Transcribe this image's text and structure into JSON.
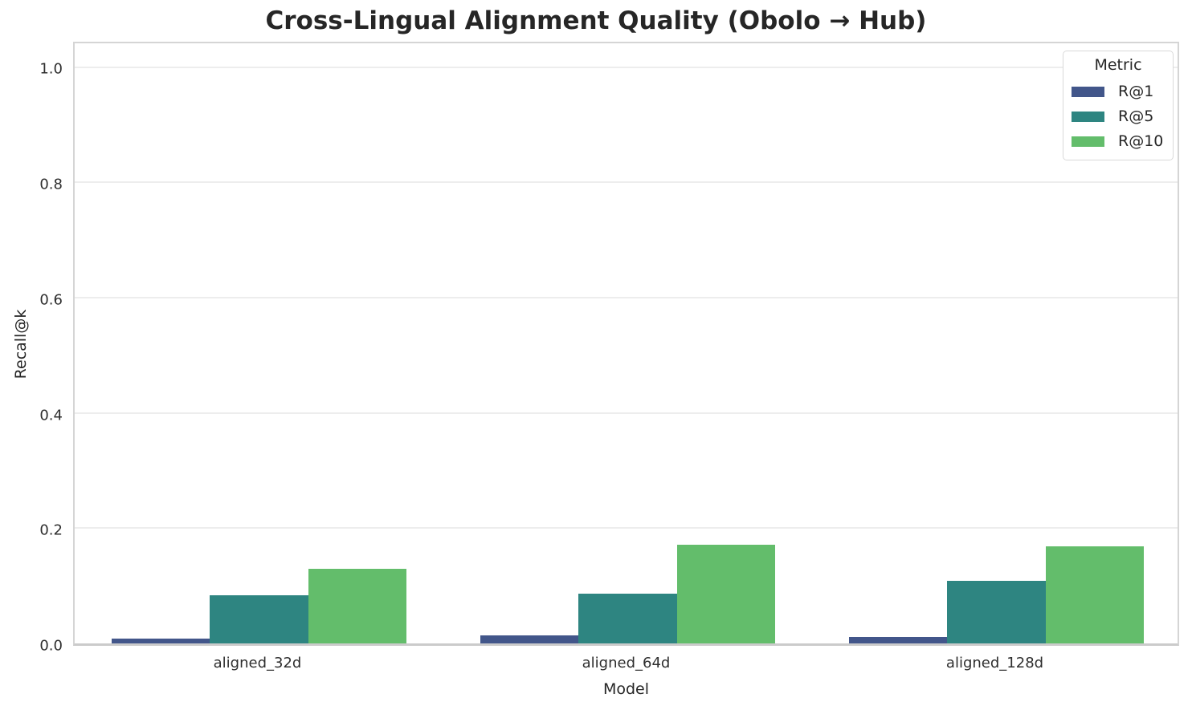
{
  "title": "Cross-Lingual Alignment Quality (Obolo → Hub)",
  "chart_data": {
    "type": "bar",
    "categories": [
      "aligned_32d",
      "aligned_64d",
      "aligned_128d"
    ],
    "series": [
      {
        "name": "R@1",
        "color": "#42568a",
        "values": [
          0.008,
          0.014,
          0.011
        ]
      },
      {
        "name": "R@5",
        "color": "#2e8581",
        "values": [
          0.083,
          0.087,
          0.108
        ]
      },
      {
        "name": "R@10",
        "color": "#63bd6b",
        "values": [
          0.13,
          0.171,
          0.169
        ]
      }
    ],
    "xlabel": "Model",
    "ylabel": "Recall@k",
    "ylim": [
      0,
      1.048
    ],
    "yticks": [
      0.0,
      0.2,
      0.4,
      0.6,
      0.8,
      1.0
    ],
    "ytick_labels": [
      "0.0",
      "0.2",
      "0.4",
      "0.6",
      "0.8",
      "1.0"
    ],
    "grid": "horizontal",
    "group_width_fraction": 0.8,
    "legend": {
      "title": "Metric",
      "position": "upper right"
    },
    "colors": {
      "gridline": "#ededed",
      "spine": "#d5d5d5",
      "text": "#262626"
    }
  }
}
